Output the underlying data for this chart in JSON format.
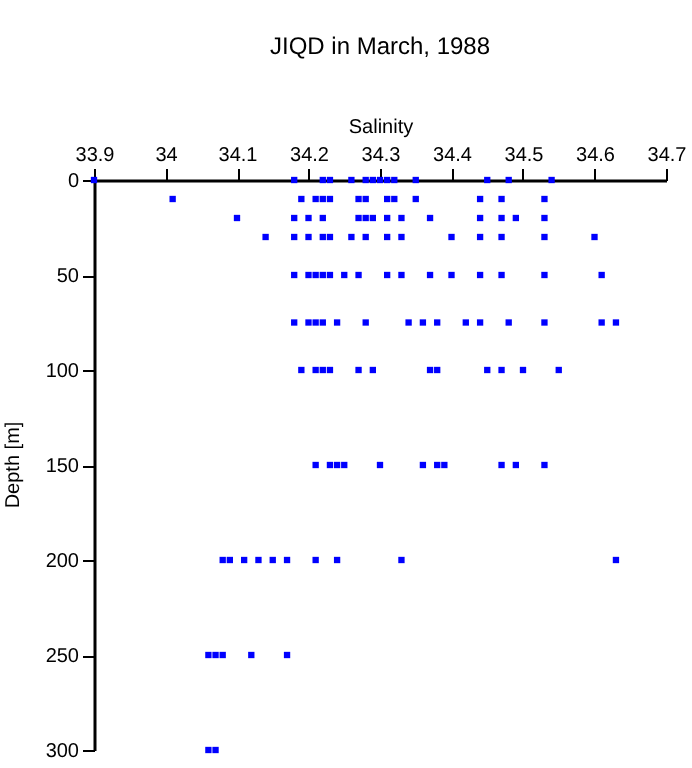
{
  "chart_data": {
    "type": "scatter",
    "title": "JIQD in March, 1988",
    "xlabel": "Salinity",
    "ylabel": "Depth [m]",
    "x": [
      33.9,
      34.18,
      34.22,
      34.23,
      34.26,
      34.28,
      34.29,
      34.3,
      34.31,
      34.32,
      34.35,
      34.45,
      34.48,
      34.54,
      34.01,
      34.19,
      34.21,
      34.22,
      34.23,
      34.27,
      34.28,
      34.31,
      34.32,
      34.35,
      34.44,
      34.47,
      34.53,
      34.1,
      34.18,
      34.2,
      34.22,
      34.27,
      34.28,
      34.29,
      34.31,
      34.33,
      34.37,
      34.44,
      34.47,
      34.49,
      34.53,
      34.14,
      34.18,
      34.2,
      34.22,
      34.23,
      34.26,
      34.28,
      34.31,
      34.33,
      34.4,
      34.44,
      34.47,
      34.53,
      34.6,
      34.18,
      34.2,
      34.21,
      34.22,
      34.23,
      34.25,
      34.27,
      34.31,
      34.33,
      34.37,
      34.4,
      34.44,
      34.47,
      34.53,
      34.61,
      34.18,
      34.2,
      34.21,
      34.22,
      34.24,
      34.28,
      34.34,
      34.36,
      34.38,
      34.42,
      34.44,
      34.48,
      34.53,
      34.61,
      34.63,
      34.19,
      34.21,
      34.22,
      34.23,
      34.27,
      34.29,
      34.37,
      34.38,
      34.45,
      34.47,
      34.5,
      34.55,
      34.21,
      34.23,
      34.24,
      34.25,
      34.3,
      34.36,
      34.38,
      34.39,
      34.47,
      34.49,
      34.53,
      34.08,
      34.09,
      34.11,
      34.13,
      34.15,
      34.17,
      34.21,
      34.24,
      34.33,
      34.63,
      34.06,
      34.07,
      34.08,
      34.12,
      34.17,
      34.06,
      34.07
    ],
    "values": [
      0,
      0,
      0,
      0,
      0,
      0,
      0,
      0,
      0,
      0,
      0,
      0,
      0,
      0,
      10,
      10,
      10,
      10,
      10,
      10,
      10,
      10,
      10,
      10,
      10,
      10,
      10,
      20,
      20,
      20,
      20,
      20,
      20,
      20,
      20,
      20,
      20,
      20,
      20,
      20,
      20,
      30,
      30,
      30,
      30,
      30,
      30,
      30,
      30,
      30,
      30,
      30,
      30,
      30,
      30,
      50,
      50,
      50,
      50,
      50,
      50,
      50,
      50,
      50,
      50,
      50,
      50,
      50,
      50,
      50,
      75,
      75,
      75,
      75,
      75,
      75,
      75,
      75,
      75,
      75,
      75,
      75,
      75,
      75,
      75,
      100,
      100,
      100,
      100,
      100,
      100,
      100,
      100,
      100,
      100,
      100,
      100,
      150,
      150,
      150,
      150,
      150,
      150,
      150,
      150,
      150,
      150,
      150,
      200,
      200,
      200,
      200,
      200,
      200,
      200,
      200,
      200,
      200,
      250,
      250,
      250,
      250,
      250,
      300,
      300
    ],
    "color": "#0000ff",
    "marker": "square",
    "grid": false,
    "xlim": [
      33.9,
      34.7
    ],
    "xticks": [
      33.9,
      34,
      34.1,
      34.2,
      34.3,
      34.4,
      34.5,
      34.6,
      34.7
    ],
    "ylim": [
      300,
      0
    ],
    "yticks": [
      0,
      50,
      100,
      150,
      200,
      250,
      300
    ]
  }
}
